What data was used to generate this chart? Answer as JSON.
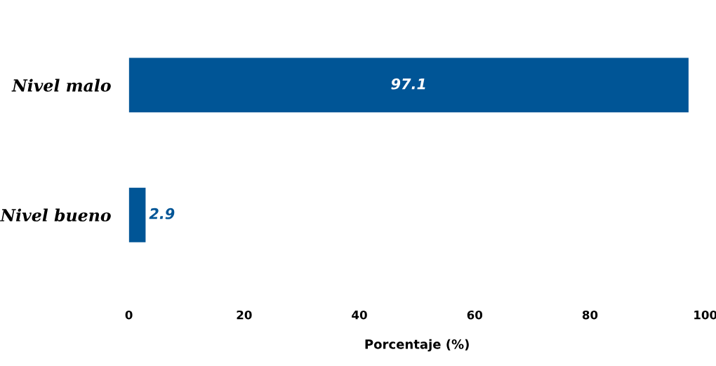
{
  "chart_data": {
    "type": "bar",
    "orientation": "horizontal",
    "xlabel": "Porcentaje (%)",
    "categories": [
      "Nivel malo",
      "Nivel bueno"
    ],
    "values": [
      97.1,
      2.9
    ],
    "color": "#005596",
    "xlim": [
      0,
      100
    ],
    "xticks": [
      0,
      20,
      40,
      60,
      80,
      100
    ],
    "data_labels": true,
    "grid": false,
    "legend": false
  }
}
